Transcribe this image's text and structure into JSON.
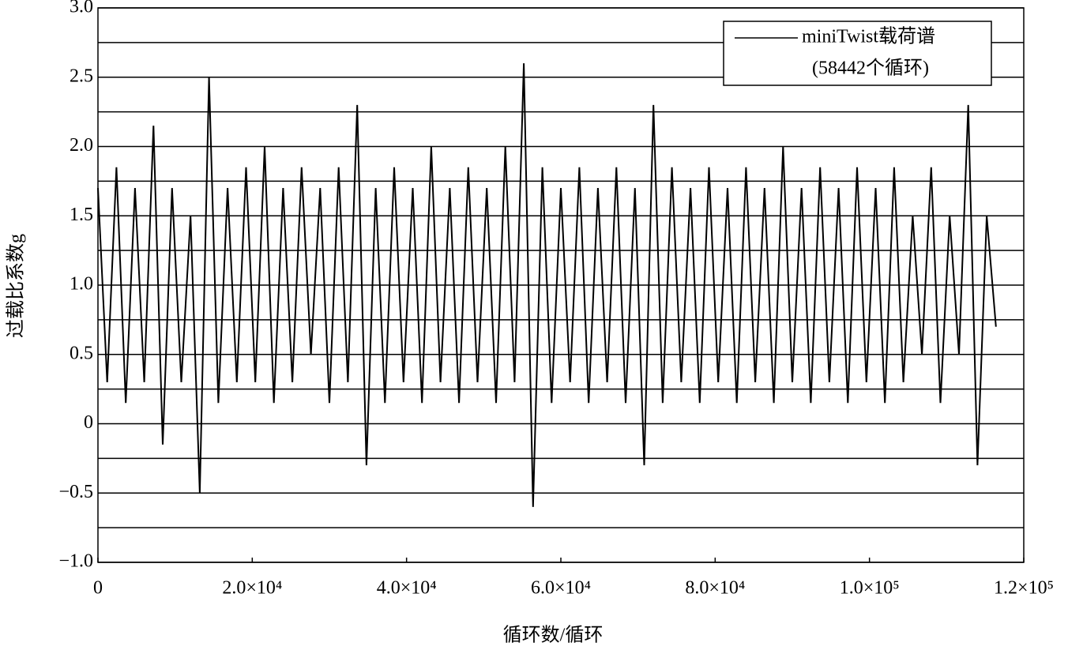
{
  "chart_data": {
    "type": "line",
    "xlabel": "循环数/循环",
    "ylabel": "过载比系数g",
    "legend": "upper right",
    "series": [
      {
        "name": "miniTwist载荷谱",
        "subtitle": "(58442个循环)",
        "color": "#000000",
        "x": [
          0,
          1200,
          2400,
          3600,
          4800,
          6000,
          7200,
          8400,
          9600,
          10800,
          12000,
          13200,
          14400,
          15600,
          16800,
          18000,
          19200,
          20400,
          21600,
          22800,
          24000,
          25200,
          26400,
          27600,
          28800,
          30000,
          31200,
          32400,
          33600,
          34800,
          36000,
          37200,
          38400,
          39600,
          40800,
          42000,
          43200,
          44400,
          45600,
          46800,
          48000,
          49200,
          50400,
          51600,
          52800,
          54000,
          55200,
          56400,
          57600,
          58800,
          60000,
          61200,
          62400,
          63600,
          64800,
          66000,
          67200,
          68400,
          69600,
          70800,
          72000,
          73200,
          74400,
          75600,
          76800,
          78000,
          79200,
          80400,
          81600,
          82800,
          84000,
          85200,
          86400,
          87600,
          88800,
          90000,
          91200,
          92400,
          93600,
          94800,
          96000,
          97200,
          98400,
          99600,
          100800,
          102000,
          103200,
          104400,
          105600,
          106800,
          108000,
          109200,
          110400,
          111600,
          112800,
          114000,
          115200,
          116400
        ],
        "values": [
          1.7,
          0.3,
          1.85,
          0.15,
          1.7,
          0.3,
          2.15,
          -0.15,
          1.7,
          0.3,
          1.5,
          -0.5,
          2.5,
          0.15,
          1.7,
          0.3,
          1.85,
          0.3,
          2.0,
          0.15,
          1.7,
          0.3,
          1.85,
          0.5,
          1.7,
          0.15,
          1.85,
          0.3,
          2.3,
          -0.3,
          1.7,
          0.15,
          1.85,
          0.3,
          1.7,
          0.15,
          2.0,
          0.3,
          1.7,
          0.15,
          1.85,
          0.3,
          1.7,
          0.15,
          2.0,
          0.3,
          2.6,
          -0.6,
          1.85,
          0.15,
          1.7,
          0.3,
          1.85,
          0.15,
          1.7,
          0.3,
          1.85,
          0.15,
          1.7,
          -0.3,
          2.3,
          0.15,
          1.85,
          0.3,
          1.7,
          0.15,
          1.85,
          0.3,
          1.7,
          0.15,
          1.85,
          0.3,
          1.7,
          0.15,
          2.0,
          0.3,
          1.7,
          0.15,
          1.85,
          0.3,
          1.7,
          0.15,
          1.85,
          0.3,
          1.7,
          0.15,
          1.85,
          0.3,
          1.5,
          0.5,
          1.85,
          0.15,
          1.5,
          0.5,
          2.3,
          -0.3,
          1.5,
          0.7
        ]
      }
    ],
    "xlim": [
      0,
      120000
    ],
    "xticks": [
      0,
      {
        "value": 20000,
        "label": "2.0×10⁴"
      },
      {
        "value": 40000,
        "label": "4.0×10⁴"
      },
      {
        "value": 60000,
        "label": "6.0×10⁴"
      },
      {
        "value": 80000,
        "label": "8.0×10⁴"
      },
      {
        "value": 100000,
        "label": "1.0×10⁵"
      },
      {
        "value": 120000,
        "label": "1.2×10⁵"
      }
    ],
    "ylim": [
      -1,
      3
    ],
    "yticks": [
      {
        "value": 3,
        "label": "3.0"
      },
      2.5,
      {
        "value": 2,
        "label": "2.0"
      },
      1.5,
      {
        "value": 1,
        "label": "1.0"
      },
      0.5,
      0,
      {
        "value": -0.5,
        "label": "−0.5"
      },
      {
        "value": -1,
        "label": "−1.0"
      }
    ],
    "minor_yticks": [
      2.75,
      2.25,
      1.75,
      1.25,
      0.75,
      0.25,
      -0.25,
      -0.75
    ],
    "grid": true
  }
}
